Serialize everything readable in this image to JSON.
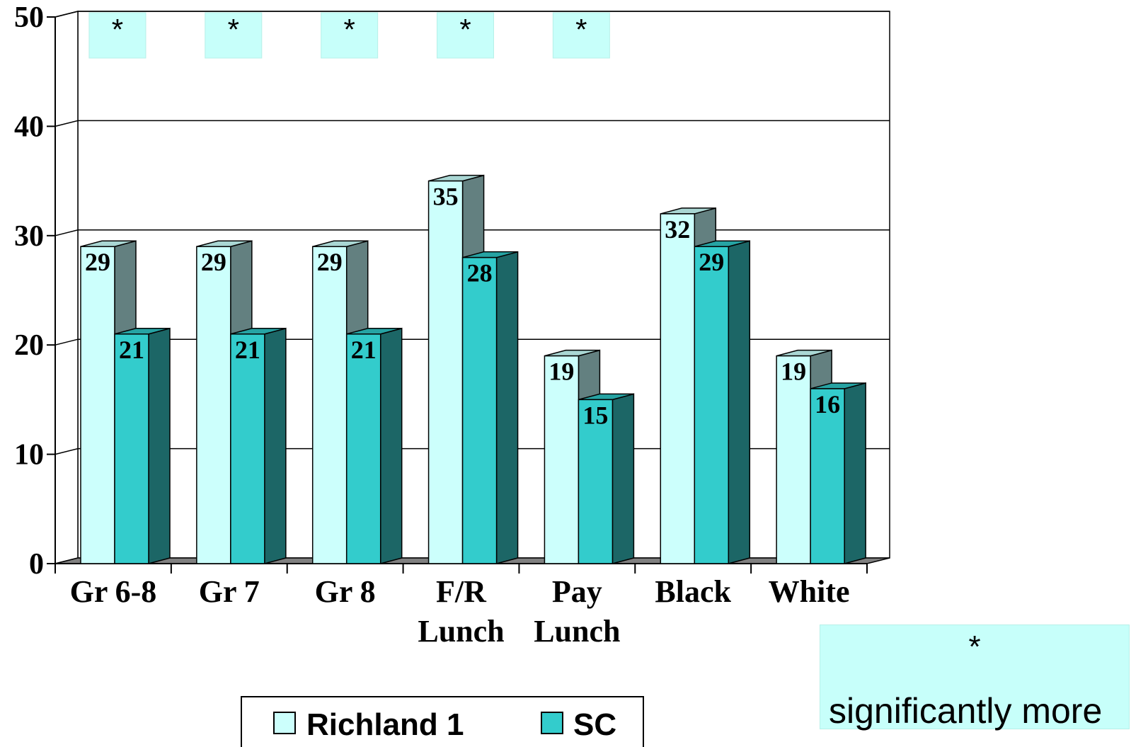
{
  "chart_data": {
    "type": "bar",
    "title": "",
    "xlabel": "",
    "ylabel": "",
    "ylim": [
      0,
      50
    ],
    "yticks": [
      "0",
      "10",
      "20",
      "30",
      "40",
      "50"
    ],
    "categories": [
      [
        "Gr 6-8"
      ],
      [
        "Gr 7"
      ],
      [
        "Gr 8"
      ],
      [
        "F/R",
        "Lunch"
      ],
      [
        "Pay",
        "Lunch"
      ],
      [
        "Black"
      ],
      [
        "White"
      ]
    ],
    "series": [
      {
        "name": "Richland 1",
        "values": [
          29,
          29,
          29,
          35,
          19,
          32,
          19
        ]
      },
      {
        "name": "SC",
        "values": [
          21,
          21,
          21,
          28,
          15,
          29,
          16
        ]
      }
    ],
    "significant": [
      true,
      true,
      true,
      true,
      true,
      false,
      false
    ],
    "significance_marker": "*",
    "grid": true,
    "legend_position": "bottom",
    "three_d": true
  },
  "note": {
    "marker": "*",
    "text": "significantly more"
  },
  "colors": {
    "richland_front": "#ccfffc",
    "richland_side": "#638080",
    "richland_top": "#a9d6d3",
    "sc_front": "#33cccc",
    "sc_side": "#1c6666",
    "sc_top": "#26a3a3",
    "star_box": "#c7fffa",
    "floor": "#808080"
  }
}
